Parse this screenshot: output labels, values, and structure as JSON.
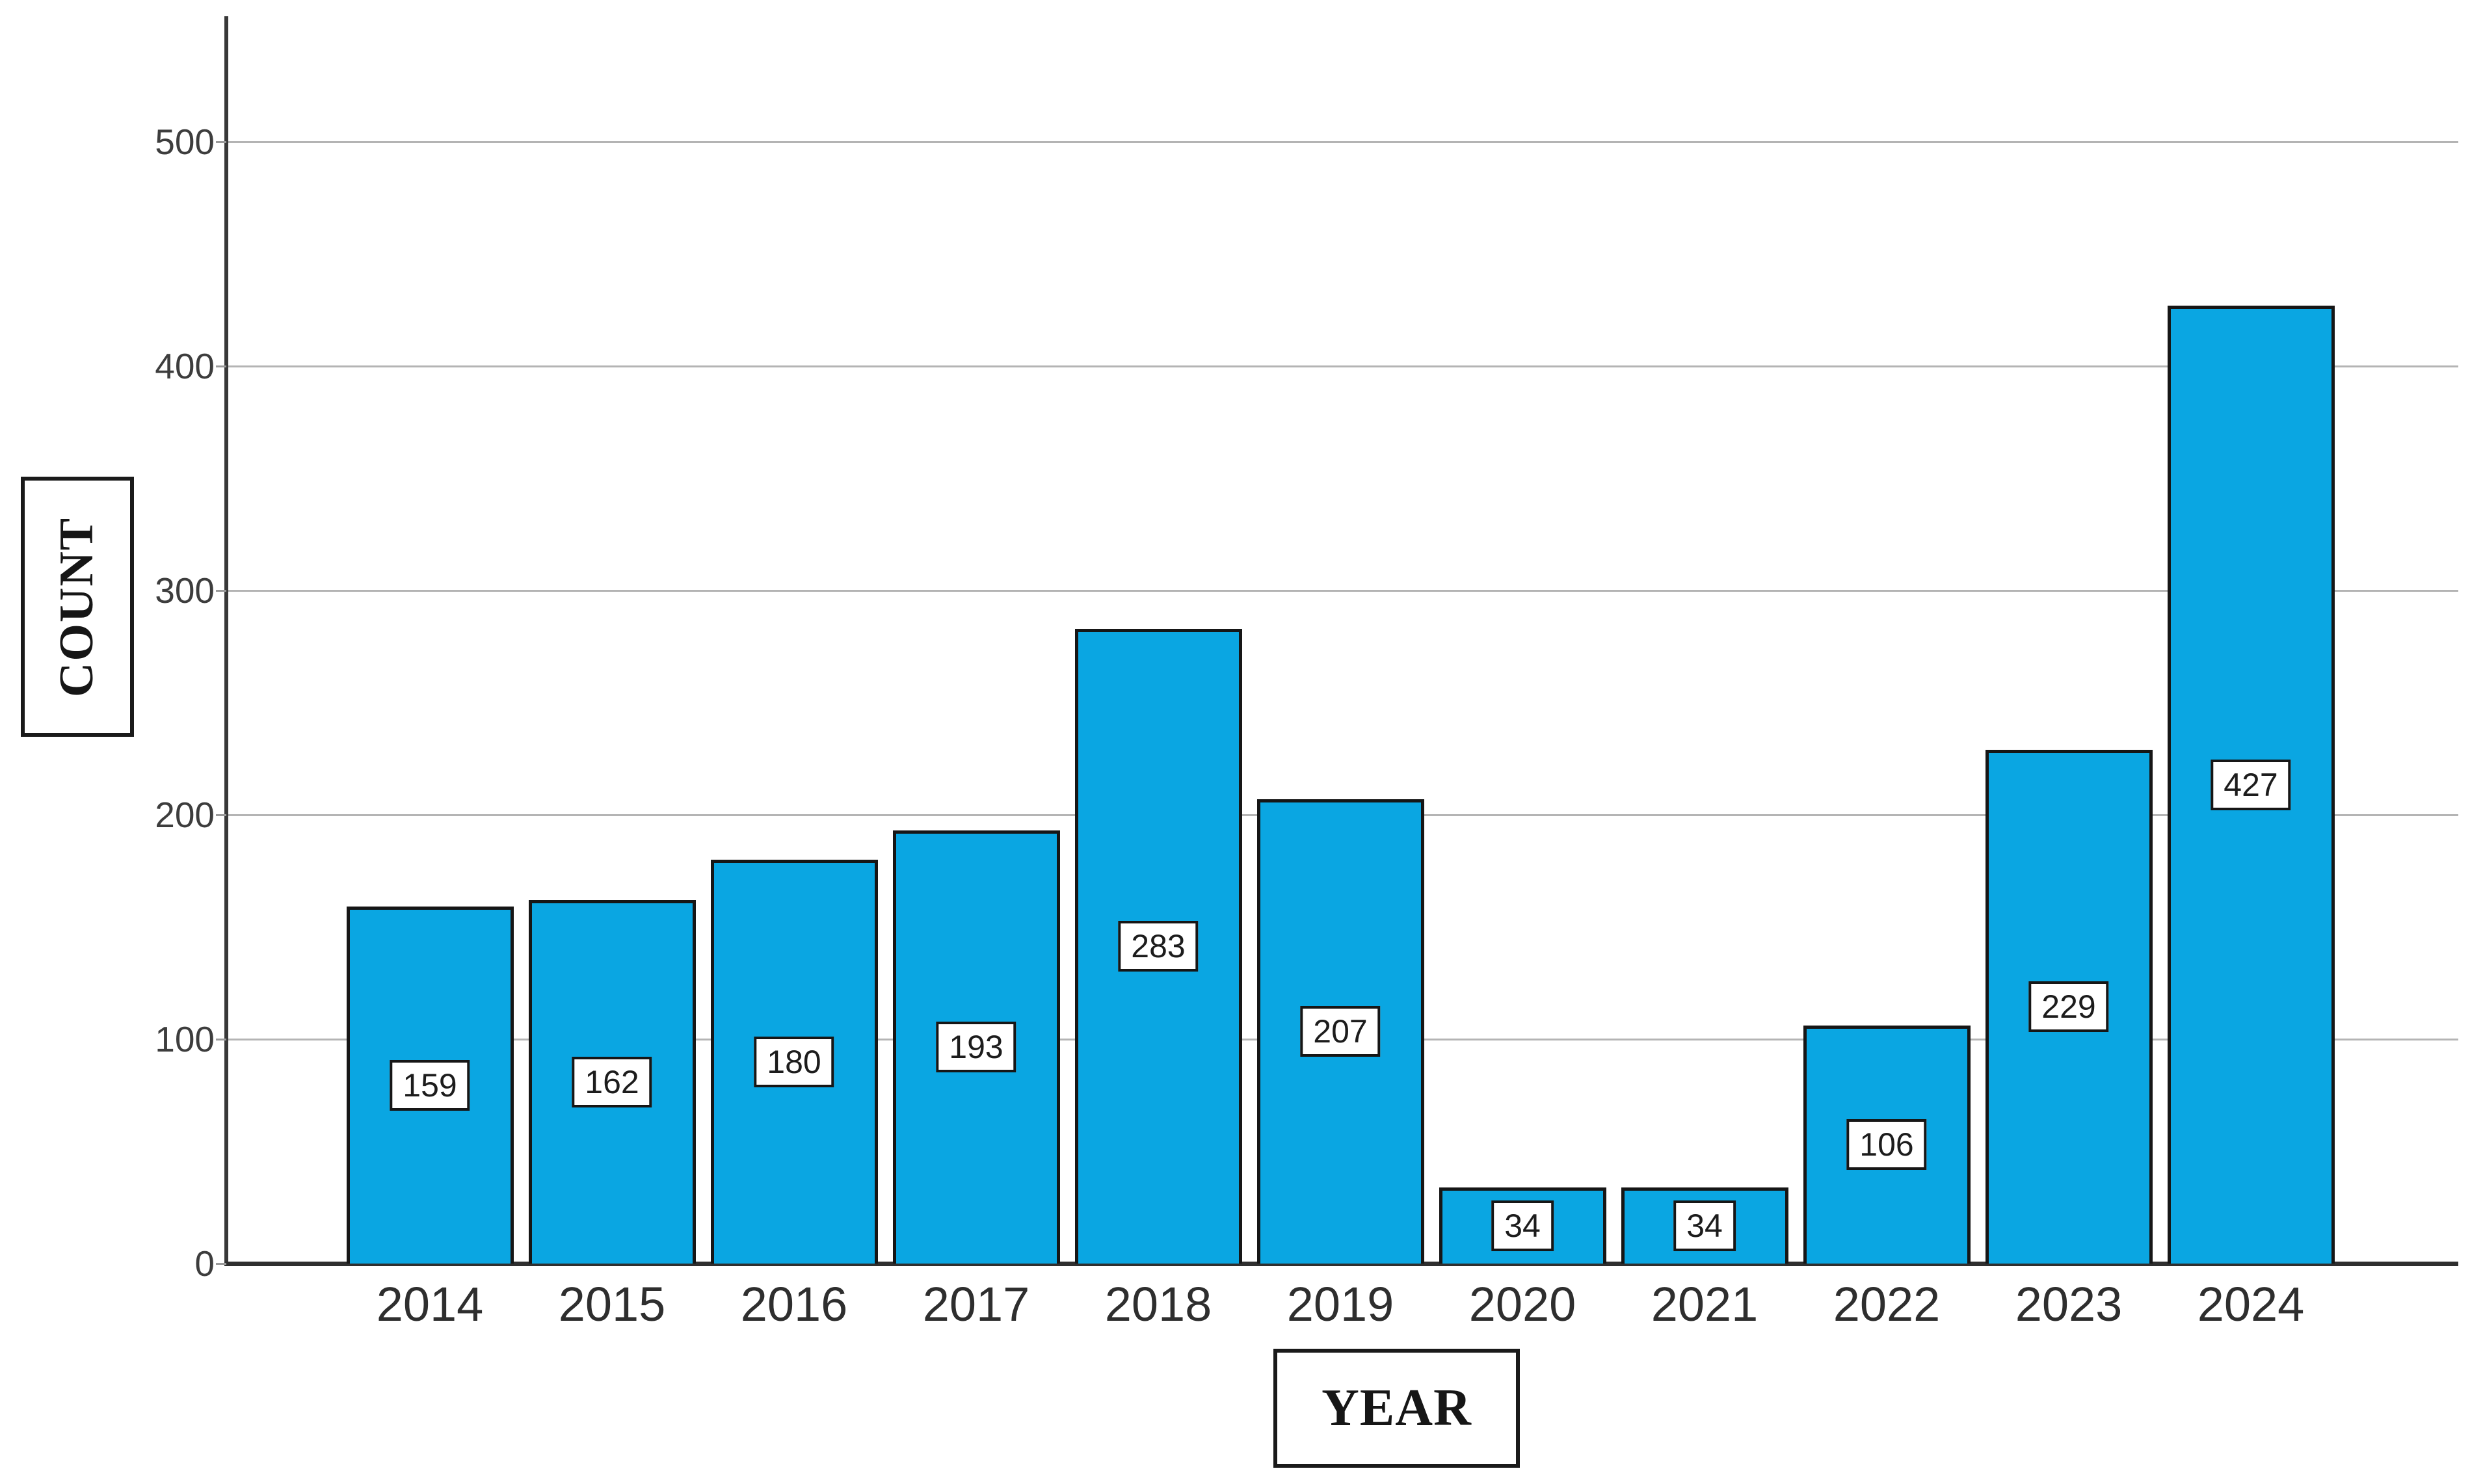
{
  "chart_data": {
    "type": "bar",
    "title": "",
    "xlabel": "YEAR",
    "ylabel": "COUNT",
    "categories": [
      "2014",
      "2015",
      "2016",
      "2017",
      "2018",
      "2019",
      "2020",
      "2021",
      "2022",
      "2023",
      "2024"
    ],
    "values": [
      159,
      162,
      180,
      193,
      283,
      207,
      34,
      34,
      106,
      229,
      427
    ],
    "data_labels": [
      "159",
      "162",
      "180",
      "193",
      "283",
      "207",
      "34",
      "34",
      "106",
      "229",
      "427"
    ],
    "yticks": [
      "0",
      "100",
      "200",
      "300",
      "400",
      "500"
    ],
    "ylim": [
      0,
      557
    ],
    "grid": "horizontal-only",
    "legend": "none",
    "bar_color": "#0aa6e2",
    "bar_border_color": "#161616",
    "gridline_color": "#b4b4b4",
    "axis_color": "#383838",
    "label_box_background": "#ffffff"
  }
}
